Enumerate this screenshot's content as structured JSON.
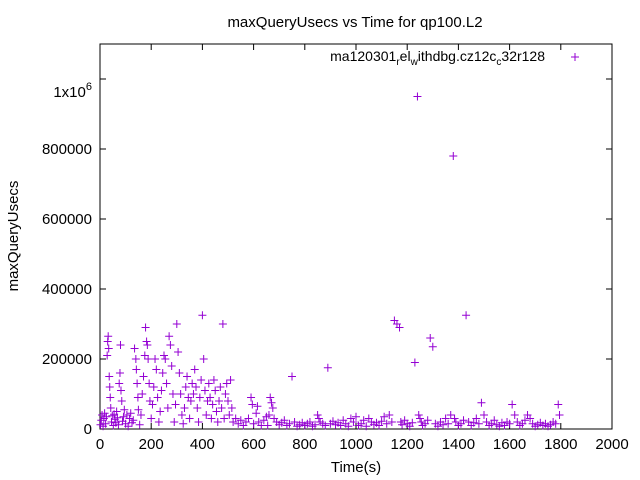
{
  "chart_data": {
    "type": "scatter",
    "title": "maxQueryUsecs vs Time for qp100.L2",
    "xlabel": "Time(s)",
    "ylabel": "maxQueryUsecs",
    "xlim": [
      0,
      2000
    ],
    "ylim": [
      0,
      1100000
    ],
    "x_ticks": [
      0,
      200,
      400,
      600,
      800,
      1000,
      1200,
      1400,
      1600,
      1800,
      2000
    ],
    "x_tick_labels": [
      "0",
      "200",
      "400",
      "600",
      "800",
      "1000",
      "1200",
      "1400",
      "1600",
      "1800",
      "2000"
    ],
    "y_ticks": [
      0,
      200000,
      400000,
      600000,
      800000,
      1000000
    ],
    "y_tick_labels": [
      "0",
      "200000",
      "400000",
      "600000",
      "800000",
      ""
    ],
    "y_top_tick_label": {
      "mantissa": "1x10",
      "exponent": "6"
    },
    "grid": false,
    "legend_position": "top-right",
    "legend_parts": [
      "ma120301",
      "r",
      "el",
      "w",
      "ithdbg.cz12c",
      "c",
      "32r128"
    ],
    "series": [
      {
        "name": "ma120301_rel_withdbg.cz12c_c32r128",
        "color": "#9400D3",
        "marker": "plus",
        "points": [
          [
            2,
            12000
          ],
          [
            5,
            25000
          ],
          [
            8,
            40000
          ],
          [
            12,
            8000
          ],
          [
            15,
            30000
          ],
          [
            18,
            45000
          ],
          [
            22,
            15000
          ],
          [
            25,
            35000
          ],
          [
            28,
            210000
          ],
          [
            30,
            250000
          ],
          [
            32,
            265000
          ],
          [
            34,
            230000
          ],
          [
            36,
            150000
          ],
          [
            38,
            120000
          ],
          [
            40,
            90000
          ],
          [
            42,
            60000
          ],
          [
            45,
            20000
          ],
          [
            48,
            38000
          ],
          [
            52,
            10000
          ],
          [
            55,
            42000
          ],
          [
            58,
            28000
          ],
          [
            62,
            18000
          ],
          [
            65,
            50000
          ],
          [
            68,
            32000
          ],
          [
            72,
            12000
          ],
          [
            75,
            130000
          ],
          [
            78,
            160000
          ],
          [
            80,
            240000
          ],
          [
            82,
            110000
          ],
          [
            85,
            80000
          ],
          [
            88,
            22000
          ],
          [
            92,
            35000
          ],
          [
            95,
            55000
          ],
          [
            100,
            15000
          ],
          [
            105,
            40000
          ],
          [
            110,
            8000
          ],
          [
            115,
            30000
          ],
          [
            120,
            45000
          ],
          [
            125,
            18000
          ],
          [
            130,
            25000
          ],
          [
            135,
            230000
          ],
          [
            140,
            200000
          ],
          [
            142,
            170000
          ],
          [
            145,
            130000
          ],
          [
            148,
            90000
          ],
          [
            150,
            55000
          ],
          [
            155,
            12000
          ],
          [
            160,
            40000
          ],
          [
            165,
            100000
          ],
          [
            170,
            150000
          ],
          [
            175,
            210000
          ],
          [
            178,
            290000
          ],
          [
            182,
            250000
          ],
          [
            185,
            240000
          ],
          [
            188,
            200000
          ],
          [
            192,
            130000
          ],
          [
            195,
            80000
          ],
          [
            200,
            30000
          ],
          [
            205,
            70000
          ],
          [
            210,
            120000
          ],
          [
            215,
            200000
          ],
          [
            220,
            170000
          ],
          [
            225,
            90000
          ],
          [
            230,
            20000
          ],
          [
            235,
            50000
          ],
          [
            240,
            110000
          ],
          [
            245,
            160000
          ],
          [
            250,
            210000
          ],
          [
            255,
            200000
          ],
          [
            260,
            130000
          ],
          [
            265,
            60000
          ],
          [
            270,
            265000
          ],
          [
            275,
            240000
          ],
          [
            280,
            180000
          ],
          [
            285,
            100000
          ],
          [
            290,
            20000
          ],
          [
            295,
            70000
          ],
          [
            300,
            300000
          ],
          [
            305,
            220000
          ],
          [
            310,
            160000
          ],
          [
            315,
            100000
          ],
          [
            320,
            40000
          ],
          [
            325,
            15000
          ],
          [
            330,
            60000
          ],
          [
            335,
            120000
          ],
          [
            340,
            150000
          ],
          [
            345,
            90000
          ],
          [
            350,
            30000
          ],
          [
            355,
            80000
          ],
          [
            360,
            130000
          ],
          [
            365,
            100000
          ],
          [
            370,
            170000
          ],
          [
            375,
            120000
          ],
          [
            380,
            60000
          ],
          [
            385,
            20000
          ],
          [
            390,
            90000
          ],
          [
            395,
            140000
          ],
          [
            400,
            325000
          ],
          [
            405,
            200000
          ],
          [
            410,
            110000
          ],
          [
            415,
            40000
          ],
          [
            420,
            80000
          ],
          [
            425,
            130000
          ],
          [
            430,
            90000
          ],
          [
            435,
            30000
          ],
          [
            440,
            70000
          ],
          [
            445,
            140000
          ],
          [
            450,
            110000
          ],
          [
            455,
            50000
          ],
          [
            460,
            20000
          ],
          [
            465,
            80000
          ],
          [
            470,
            120000
          ],
          [
            475,
            60000
          ],
          [
            480,
            300000
          ],
          [
            485,
            30000
          ],
          [
            490,
            100000
          ],
          [
            495,
            130000
          ],
          [
            500,
            80000
          ],
          [
            505,
            40000
          ],
          [
            510,
            140000
          ],
          [
            515,
            60000
          ],
          [
            520,
            20000
          ],
          [
            530,
            30000
          ],
          [
            540,
            15000
          ],
          [
            550,
            25000
          ],
          [
            560,
            10000
          ],
          [
            570,
            20000
          ],
          [
            580,
            30000
          ],
          [
            590,
            90000
          ],
          [
            595,
            70000
          ],
          [
            600,
            15000
          ],
          [
            610,
            45000
          ],
          [
            615,
            65000
          ],
          [
            620,
            20000
          ],
          [
            630,
            10000
          ],
          [
            640,
            25000
          ],
          [
            650,
            35000
          ],
          [
            655,
            10000
          ],
          [
            660,
            40000
          ],
          [
            665,
            90000
          ],
          [
            670,
            75000
          ],
          [
            675,
            60000
          ],
          [
            680,
            30000
          ],
          [
            690,
            20000
          ],
          [
            700,
            12000
          ],
          [
            710,
            18000
          ],
          [
            720,
            25000
          ],
          [
            730,
            10000
          ],
          [
            740,
            15000
          ],
          [
            750,
            150000
          ],
          [
            760,
            20000
          ],
          [
            770,
            8000
          ],
          [
            780,
            12000
          ],
          [
            790,
            18000
          ],
          [
            800,
            10000
          ],
          [
            810,
            15000
          ],
          [
            820,
            20000
          ],
          [
            830,
            8000
          ],
          [
            840,
            12000
          ],
          [
            850,
            40000
          ],
          [
            855,
            30000
          ],
          [
            860,
            20000
          ],
          [
            870,
            15000
          ],
          [
            880,
            10000
          ],
          [
            890,
            175000
          ],
          [
            900,
            15000
          ],
          [
            910,
            22000
          ],
          [
            920,
            12000
          ],
          [
            930,
            18000
          ],
          [
            940,
            10000
          ],
          [
            950,
            25000
          ],
          [
            960,
            15000
          ],
          [
            970,
            8000
          ],
          [
            980,
            30000
          ],
          [
            990,
            20000
          ],
          [
            1000,
            35000
          ],
          [
            1010,
            10000
          ],
          [
            1020,
            15000
          ],
          [
            1030,
            25000
          ],
          [
            1040,
            8000
          ],
          [
            1050,
            30000
          ],
          [
            1060,
            20000
          ],
          [
            1070,
            12000
          ],
          [
            1080,
            18000
          ],
          [
            1090,
            10000
          ],
          [
            1100,
            22000
          ],
          [
            1110,
            35000
          ],
          [
            1120,
            15000
          ],
          [
            1130,
            40000
          ],
          [
            1140,
            20000
          ],
          [
            1150,
            310000
          ],
          [
            1160,
            300000
          ],
          [
            1170,
            290000
          ],
          [
            1175,
            20000
          ],
          [
            1180,
            12000
          ],
          [
            1190,
            25000
          ],
          [
            1200,
            15000
          ],
          [
            1210,
            8000
          ],
          [
            1220,
            18000
          ],
          [
            1230,
            190000
          ],
          [
            1240,
            950000
          ],
          [
            1245,
            40000
          ],
          [
            1250,
            30000
          ],
          [
            1255,
            20000
          ],
          [
            1260,
            10000
          ],
          [
            1270,
            15000
          ],
          [
            1280,
            25000
          ],
          [
            1290,
            260000
          ],
          [
            1300,
            235000
          ],
          [
            1310,
            15000
          ],
          [
            1320,
            8000
          ],
          [
            1330,
            20000
          ],
          [
            1340,
            12000
          ],
          [
            1350,
            30000
          ],
          [
            1360,
            15000
          ],
          [
            1370,
            40000
          ],
          [
            1380,
            780000
          ],
          [
            1385,
            30000
          ],
          [
            1390,
            20000
          ],
          [
            1400,
            10000
          ],
          [
            1410,
            15000
          ],
          [
            1420,
            25000
          ],
          [
            1430,
            325000
          ],
          [
            1440,
            20000
          ],
          [
            1450,
            10000
          ],
          [
            1460,
            18000
          ],
          [
            1470,
            30000
          ],
          [
            1480,
            15000
          ],
          [
            1490,
            75000
          ],
          [
            1500,
            40000
          ],
          [
            1510,
            20000
          ],
          [
            1520,
            10000
          ],
          [
            1530,
            15000
          ],
          [
            1540,
            25000
          ],
          [
            1550,
            12000
          ],
          [
            1560,
            8000
          ],
          [
            1570,
            18000
          ],
          [
            1580,
            10000
          ],
          [
            1590,
            20000
          ],
          [
            1600,
            15000
          ],
          [
            1610,
            70000
          ],
          [
            1620,
            40000
          ],
          [
            1630,
            20000
          ],
          [
            1640,
            10000
          ],
          [
            1650,
            15000
          ],
          [
            1660,
            25000
          ],
          [
            1670,
            40000
          ],
          [
            1680,
            30000
          ],
          [
            1690,
            15000
          ],
          [
            1700,
            8000
          ],
          [
            1710,
            12000
          ],
          [
            1720,
            18000
          ],
          [
            1730,
            10000
          ],
          [
            1740,
            15000
          ],
          [
            1750,
            8000
          ],
          [
            1760,
            12000
          ],
          [
            1770,
            20000
          ],
          [
            1780,
            15000
          ],
          [
            1790,
            70000
          ],
          [
            1795,
            40000
          ]
        ]
      }
    ]
  }
}
